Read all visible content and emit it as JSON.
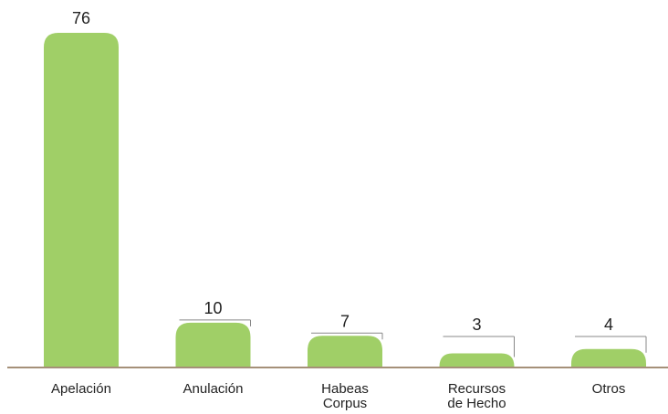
{
  "chart_data": {
    "type": "bar",
    "title": "",
    "xlabel": "",
    "ylabel": "",
    "categories": [
      [
        "Apelación"
      ],
      [
        "Anulación"
      ],
      [
        "Habeas",
        "Corpus"
      ],
      [
        "Recursos",
        "de Hecho"
      ],
      [
        "Otros"
      ]
    ],
    "values": [
      76,
      10,
      7,
      3,
      4
    ],
    "data_labels": [
      "76",
      "10",
      "7",
      "3",
      "4"
    ],
    "ylim": [
      0,
      76
    ],
    "grid": false,
    "legend": "none",
    "colors": {
      "bar": "#a0cf67",
      "axis": "#a59078",
      "leader": "#888888",
      "text": "#222222"
    }
  }
}
